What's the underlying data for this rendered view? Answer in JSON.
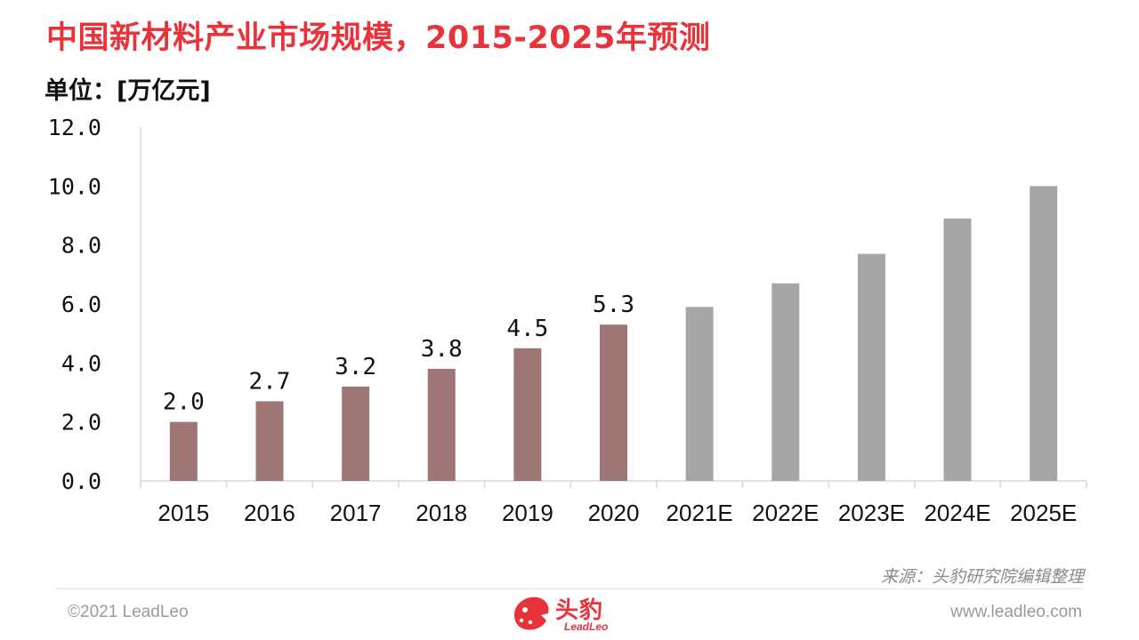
{
  "title": "中国新材料产业市场规模，2015-2025年预测",
  "unit_label": "单位：[万亿元]",
  "source": "来源：头豹研究院编辑整理",
  "footer": {
    "copyright": "©2021 LeadLeo",
    "website": "www.leadleo.com",
    "logo_cn": "头豹",
    "logo_en": "LeadLeo"
  },
  "colors": {
    "title": "#e8333a",
    "actual_bar": "#9e7676",
    "forecast_bar": "#a6a6a6",
    "axis": "#d9d9d9",
    "text": "#111111"
  },
  "chart_data": {
    "type": "bar",
    "title": "中国新材料产业市场规模，2015-2025年预测",
    "ylabel": "单位：[万亿元]",
    "xlabel": "",
    "ylim": [
      0,
      12
    ],
    "yticks": [
      "0.0",
      "2.0",
      "4.0",
      "6.0",
      "8.0",
      "10.0",
      "12.0"
    ],
    "categories": [
      "2015",
      "2016",
      "2017",
      "2018",
      "2019",
      "2020",
      "2021E",
      "2022E",
      "2023E",
      "2024E",
      "2025E"
    ],
    "values": [
      2.0,
      2.7,
      3.2,
      3.8,
      4.5,
      5.3,
      5.9,
      6.7,
      7.7,
      8.9,
      10.0
    ],
    "data_labels": [
      "2.0",
      "2.7",
      "3.2",
      "3.8",
      "4.5",
      "5.3",
      "",
      "",
      "",
      "",
      ""
    ],
    "forecast": [
      false,
      false,
      false,
      false,
      false,
      false,
      true,
      true,
      true,
      true,
      true
    ],
    "grid": false,
    "legend": "none"
  }
}
